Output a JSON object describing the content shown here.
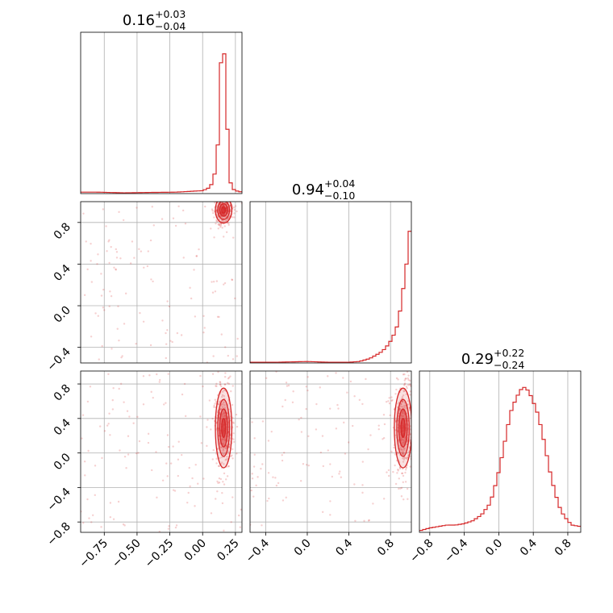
{
  "chart_data": {
    "type": "corner",
    "color": "#d62728",
    "grid": true,
    "parameters": [
      {
        "range": [
          -0.93,
          0.3
        ],
        "ticks": [
          -0.75,
          -0.5,
          -0.25,
          0.0,
          0.25
        ],
        "tick_labels": [
          "−0.75",
          "−0.50",
          "−0.25",
          "0.00",
          "0.25"
        ],
        "title": {
          "median": "0.16",
          "plus": "+0.03",
          "minus": "−0.04"
        },
        "hist": {
          "x": [
            -0.93,
            -0.8,
            -0.6,
            -0.4,
            -0.2,
            -0.1,
            0.0,
            0.05,
            0.08,
            0.1,
            0.12,
            0.13,
            0.14,
            0.15,
            0.16,
            0.17,
            0.18,
            0.19,
            0.2,
            0.22,
            0.25,
            0.3
          ],
          "density": [
            0.01,
            0.01,
            0.005,
            0.008,
            0.01,
            0.015,
            0.02,
            0.04,
            0.08,
            0.18,
            0.38,
            0.62,
            0.9,
            1.0,
            1.0,
            0.92,
            0.75,
            0.42,
            0.15,
            0.04,
            0.02,
            0.01
          ]
        }
      },
      {
        "range": [
          -0.55,
          1.0
        ],
        "ticks": [
          -0.4,
          0.0,
          0.4,
          0.8
        ],
        "tick_labels": [
          "−0.4",
          "0.0",
          "0.4",
          "0.8"
        ],
        "title": {
          "median": "0.94",
          "plus": "+0.04",
          "minus": "−0.10"
        },
        "hist": {
          "x": [
            -0.55,
            -0.3,
            0.0,
            0.2,
            0.4,
            0.5,
            0.55,
            0.6,
            0.65,
            0.7,
            0.75,
            0.8,
            0.85,
            0.88,
            0.9,
            0.92,
            0.94,
            0.96,
            0.98,
            1.0
          ],
          "density": [
            0.005,
            0.005,
            0.01,
            0.005,
            0.005,
            0.01,
            0.02,
            0.03,
            0.05,
            0.07,
            0.1,
            0.15,
            0.22,
            0.3,
            0.4,
            0.5,
            0.6,
            0.72,
            0.88,
            1.0
          ]
        }
      },
      {
        "range": [
          -0.92,
          0.95
        ],
        "ticks": [
          -0.8,
          -0.4,
          0.0,
          0.4,
          0.8
        ],
        "tick_labels": [
          "−0.8",
          "−0.4",
          "0.0",
          "0.4",
          "0.8"
        ],
        "title": {
          "median": "0.29",
          "plus": "+0.22",
          "minus": "−0.24"
        },
        "hist": {
          "x": [
            -0.92,
            -0.8,
            -0.6,
            -0.5,
            -0.4,
            -0.3,
            -0.2,
            -0.1,
            -0.05,
            0.0,
            0.05,
            0.1,
            0.15,
            0.2,
            0.25,
            0.3,
            0.35,
            0.4,
            0.45,
            0.5,
            0.55,
            0.6,
            0.65,
            0.7,
            0.75,
            0.8,
            0.85,
            0.95
          ],
          "density": [
            0.01,
            0.03,
            0.05,
            0.05,
            0.06,
            0.08,
            0.12,
            0.2,
            0.3,
            0.42,
            0.56,
            0.72,
            0.85,
            0.92,
            0.98,
            1.0,
            0.97,
            0.9,
            0.82,
            0.7,
            0.55,
            0.4,
            0.28,
            0.18,
            0.12,
            0.08,
            0.05,
            0.04
          ]
        }
      }
    ],
    "pairs": [
      {
        "xi": 0,
        "yi": 1,
        "center": [
          0.16,
          0.92
        ],
        "sd": [
          0.03,
          0.06
        ]
      },
      {
        "xi": 0,
        "yi": 2,
        "center": [
          0.16,
          0.29
        ],
        "sd": [
          0.03,
          0.22
        ]
      },
      {
        "xi": 1,
        "yi": 2,
        "center": [
          0.92,
          0.29
        ],
        "sd": [
          0.04,
          0.22
        ]
      }
    ]
  }
}
